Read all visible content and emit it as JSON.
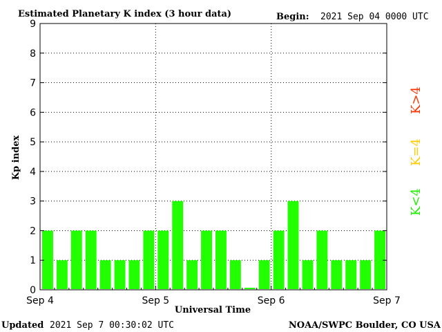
{
  "header": {
    "title": "Estimated Planetary K index (3 hour data)",
    "begin_label": "Begin:",
    "begin_value": "2021 Sep 04 0000 UTC"
  },
  "footer": {
    "updated_label": "Updated",
    "updated_value": "2021 Sep  7 00:30:02 UTC",
    "source": "NOAA/SWPC Boulder, CO USA"
  },
  "legend": [
    {
      "label": "K<4",
      "color": "#22ee00"
    },
    {
      "label": "K=4",
      "color": "#ffcc00"
    },
    {
      "label": "K>4",
      "color": "#ff3300"
    }
  ],
  "chart_data": {
    "type": "bar",
    "title": "Estimated Planetary K index (3 hour data)",
    "xlabel": "Universal Time",
    "ylabel": "Kp index",
    "ylim": [
      0,
      9
    ],
    "yticks": [
      "0",
      "1",
      "2",
      "3",
      "4",
      "5",
      "6",
      "7",
      "8",
      "9"
    ],
    "xticks": [
      "Sep 4",
      "Sep 5",
      "Sep 6",
      "Sep 7"
    ],
    "categories": [
      "Sep 4 00",
      "Sep 4 03",
      "Sep 4 06",
      "Sep 4 09",
      "Sep 4 12",
      "Sep 4 15",
      "Sep 4 18",
      "Sep 4 21",
      "Sep 5 00",
      "Sep 5 03",
      "Sep 5 06",
      "Sep 5 09",
      "Sep 5 12",
      "Sep 5 15",
      "Sep 5 18",
      "Sep 5 21",
      "Sep 6 00",
      "Sep 6 03",
      "Sep 6 06",
      "Sep 6 09",
      "Sep 6 12",
      "Sep 6 15",
      "Sep 6 18",
      "Sep 6 21"
    ],
    "values": [
      2,
      1,
      2,
      2,
      1,
      1,
      1,
      2,
      2,
      3,
      1,
      2,
      2,
      1,
      0.07,
      1,
      2,
      3,
      1,
      2,
      1,
      1,
      1,
      2
    ],
    "bar_color": "#22ff00",
    "grid": true,
    "legend_position": "right"
  }
}
